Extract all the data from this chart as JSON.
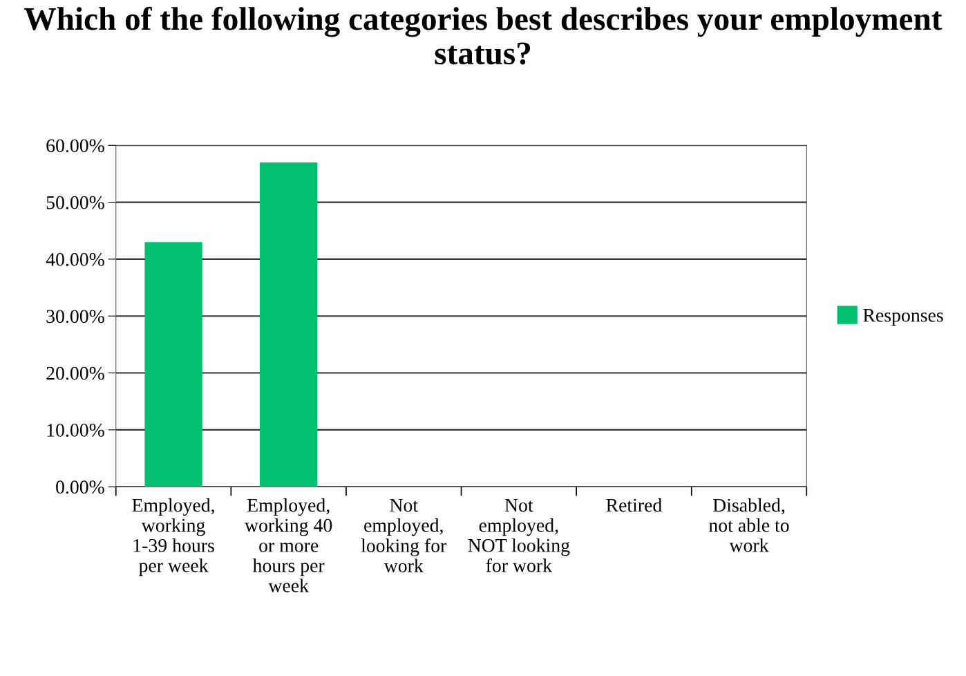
{
  "chart_data": {
    "type": "bar",
    "title": "Which of the following categories best describes your employment status?",
    "categories": [
      "Employed, working 1-39 hours per week",
      "Employed, working 40 or more hours per week",
      "Not employed, looking for work",
      "Not employed, NOT looking for work",
      "Retired",
      "Disabled, not able to work"
    ],
    "series": [
      {
        "name": "Responses",
        "color": "#00bf6f",
        "values": [
          43,
          57,
          0,
          0,
          0,
          0
        ]
      }
    ],
    "ylim": [
      0,
      60
    ],
    "yticks": [
      {
        "value": 0,
        "label": "0.00%"
      },
      {
        "value": 10,
        "label": "10.00%"
      },
      {
        "value": 20,
        "label": "20.00%"
      },
      {
        "value": 30,
        "label": "30.00%"
      },
      {
        "value": 40,
        "label": "40.00%"
      },
      {
        "value": 50,
        "label": "50.00%"
      },
      {
        "value": 60,
        "label": "60.00%"
      }
    ],
    "grid": "y",
    "legend": "right"
  }
}
